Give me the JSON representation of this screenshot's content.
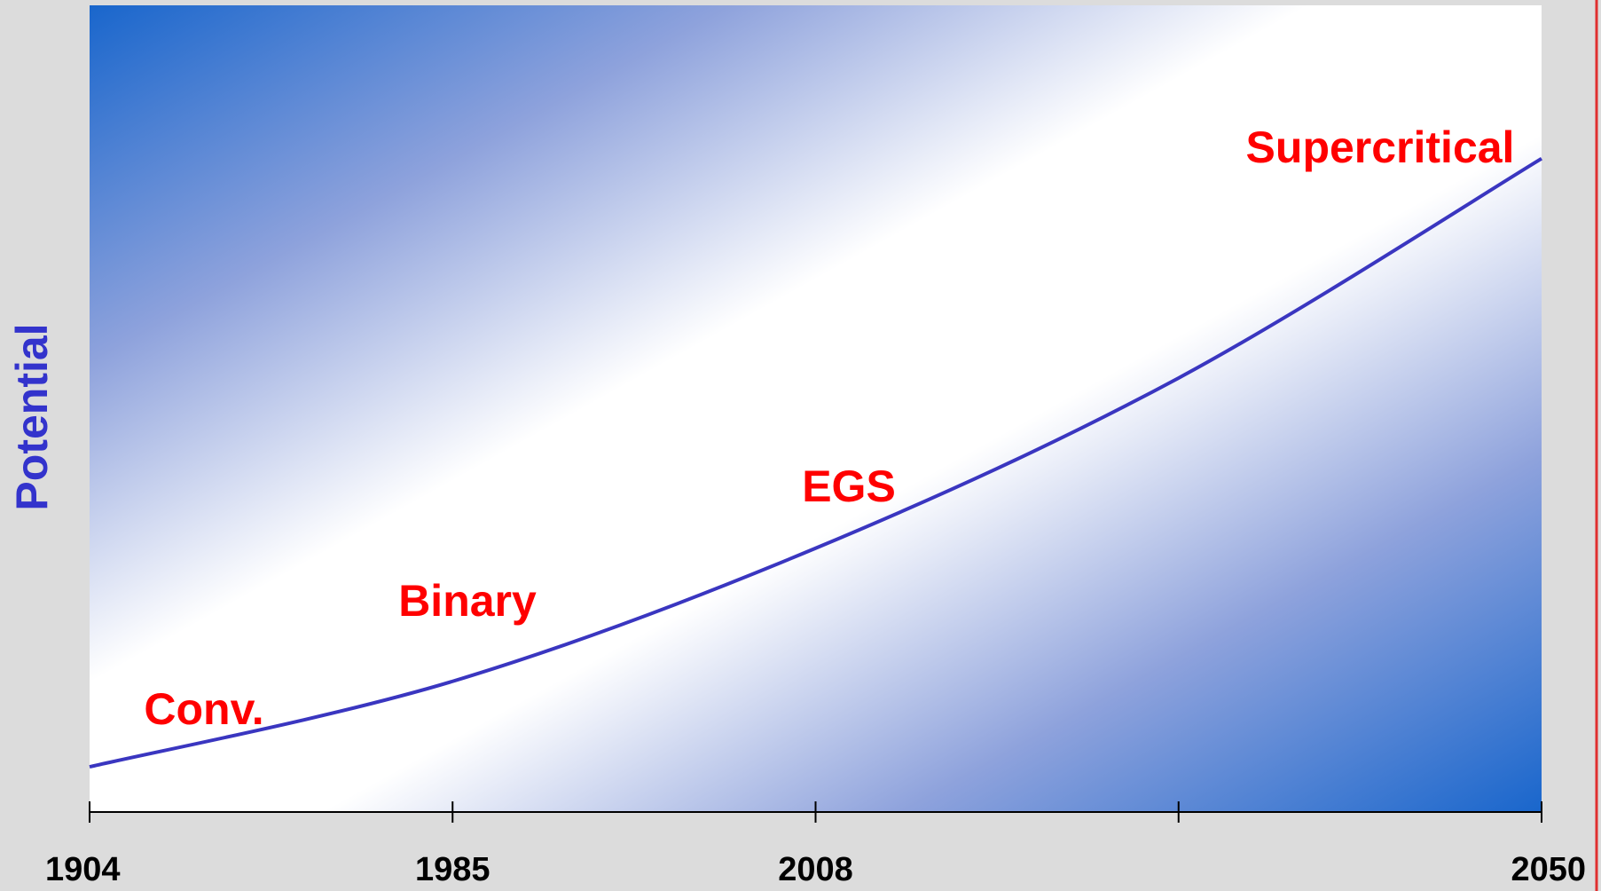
{
  "chart_data": {
    "type": "line",
    "ylabel": "Potential",
    "categories": [
      "1904",
      "1985",
      "2008",
      null,
      "2050"
    ],
    "series": [
      {
        "name": "Potential",
        "color": "#3a36c0",
        "values": [
          5.6,
          16.2,
          32.7,
          53.8,
          81
        ]
      }
    ],
    "ylim": [
      0,
      100
    ],
    "annotations": [
      "Conv.",
      "Binary",
      "EGS",
      "Supercritical"
    ],
    "annotation_color": "#ff0000",
    "ylabel_color": "#3333cc"
  }
}
